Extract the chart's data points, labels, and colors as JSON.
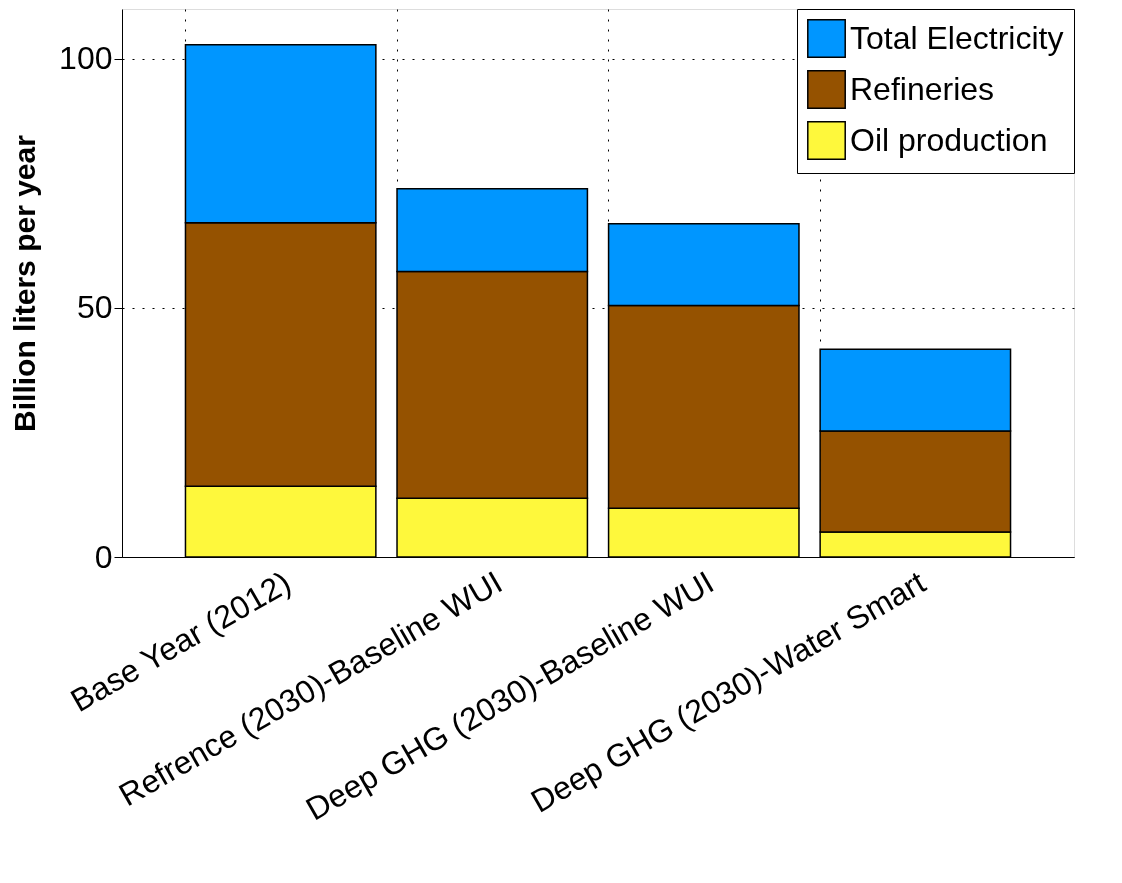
{
  "chart_data": {
    "type": "bar",
    "ylabel": "Billion liters per year",
    "categories": [
      "Base Year (2012)",
      "Refrence (2030)-Baseline WUI",
      "Deep GHG (2030)-Baseline WUI",
      "Deep GHG (2030)-Water Smart"
    ],
    "stacked": true,
    "series": [
      {
        "name": "Oil production",
        "color": "#fef83c",
        "values": [
          14.2,
          11.8,
          9.8,
          5.0
        ]
      },
      {
        "name": "Refineries",
        "color": "#955200",
        "values": [
          52.9,
          45.5,
          40.7,
          20.3
        ]
      },
      {
        "name": "Total Electricity",
        "color": "#0096ff",
        "values": [
          35.7,
          16.6,
          16.4,
          16.4
        ]
      }
    ],
    "ylim": [
      0,
      110
    ],
    "yticks": [
      0,
      50,
      100
    ],
    "grid": true,
    "legend": "top right"
  }
}
